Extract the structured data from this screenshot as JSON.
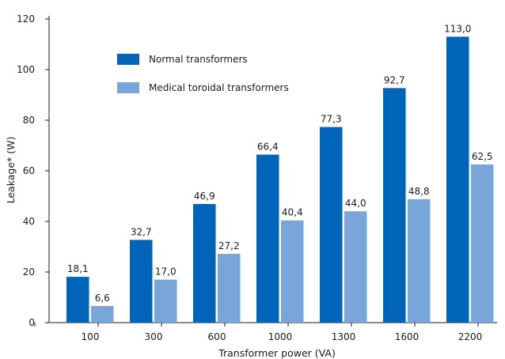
{
  "chart_data": {
    "type": "bar",
    "categories": [
      "100",
      "300",
      "600",
      "1000",
      "1300",
      "1600",
      "2200"
    ],
    "series": [
      {
        "name": "Normal transformers",
        "color": "#0065b8",
        "values": [
          18.1,
          32.7,
          46.9,
          66.4,
          77.3,
          92.7,
          113.0
        ],
        "labels": [
          "18,1",
          "32,7",
          "46,9",
          "66,4",
          "77,3",
          "92,7",
          "113,0"
        ]
      },
      {
        "name": "Medical toroidal transformers",
        "color": "#78a6db",
        "values": [
          6.6,
          17.0,
          27.2,
          40.4,
          44.0,
          48.8,
          62.5
        ],
        "labels": [
          "6,6",
          "17,0",
          "27,2",
          "40,4",
          "44,0",
          "48,8",
          "62,5"
        ]
      }
    ],
    "xlabel": "Transformer power (VA)",
    "ylabel": "Leakage* (W)",
    "ylim": [
      0,
      120
    ],
    "yticks": [
      0,
      20,
      40,
      60,
      80,
      100,
      120
    ],
    "grid": false,
    "legend_position": "top-left"
  }
}
